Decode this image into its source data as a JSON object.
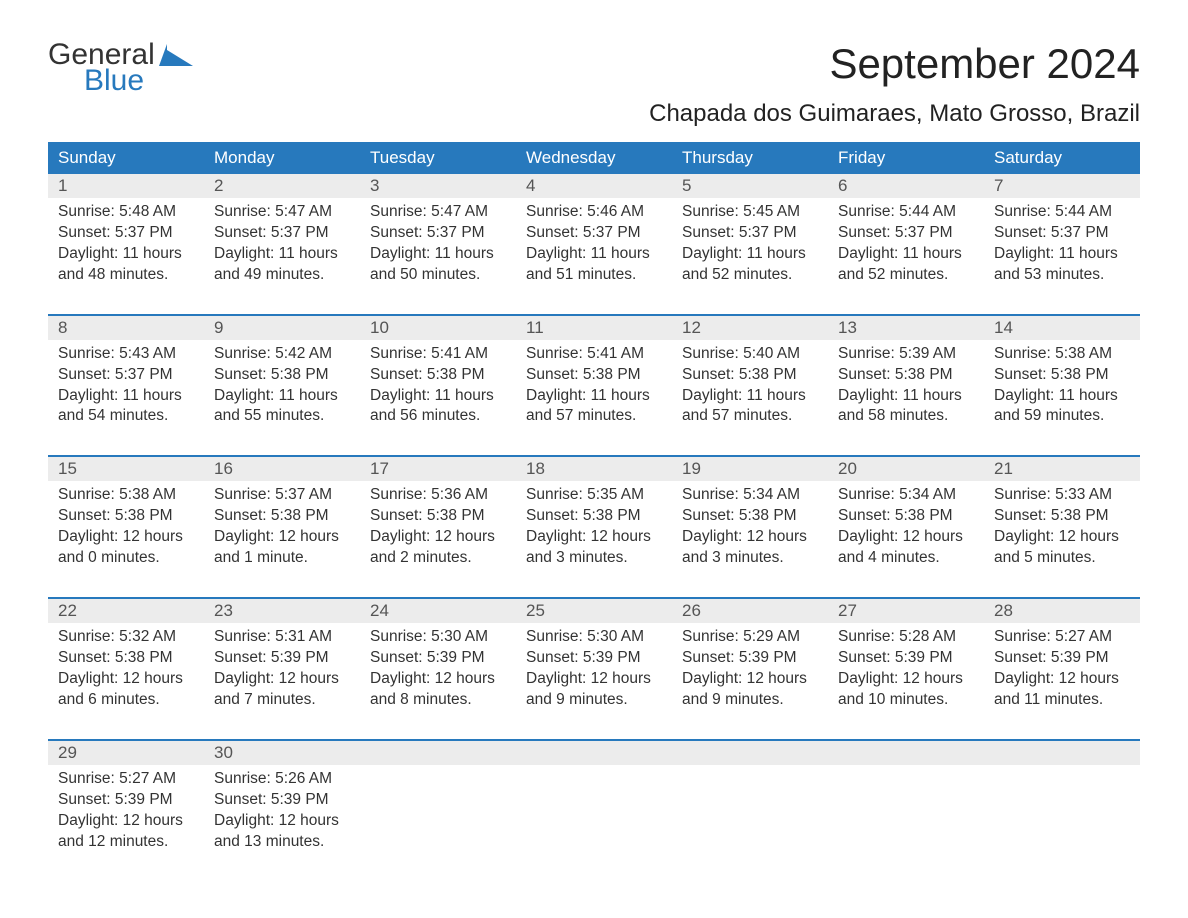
{
  "logo": {
    "line1": "General",
    "line2": "Blue",
    "mark_color": "#2779bd"
  },
  "title": "September 2024",
  "subtitle": "Chapada dos Guimaraes, Mato Grosso, Brazil",
  "colors": {
    "header_bg": "#2779bd",
    "header_text": "#ffffff",
    "daynum_bg": "#ececec",
    "text": "#333333",
    "rule": "#2779bd"
  },
  "weekdays": [
    "Sunday",
    "Monday",
    "Tuesday",
    "Wednesday",
    "Thursday",
    "Friday",
    "Saturday"
  ],
  "weeks": [
    [
      {
        "n": "1",
        "sunrise": "Sunrise: 5:48 AM",
        "sunset": "Sunset: 5:37 PM",
        "day1": "Daylight: 11 hours",
        "day2": "and 48 minutes."
      },
      {
        "n": "2",
        "sunrise": "Sunrise: 5:47 AM",
        "sunset": "Sunset: 5:37 PM",
        "day1": "Daylight: 11 hours",
        "day2": "and 49 minutes."
      },
      {
        "n": "3",
        "sunrise": "Sunrise: 5:47 AM",
        "sunset": "Sunset: 5:37 PM",
        "day1": "Daylight: 11 hours",
        "day2": "and 50 minutes."
      },
      {
        "n": "4",
        "sunrise": "Sunrise: 5:46 AM",
        "sunset": "Sunset: 5:37 PM",
        "day1": "Daylight: 11 hours",
        "day2": "and 51 minutes."
      },
      {
        "n": "5",
        "sunrise": "Sunrise: 5:45 AM",
        "sunset": "Sunset: 5:37 PM",
        "day1": "Daylight: 11 hours",
        "day2": "and 52 minutes."
      },
      {
        "n": "6",
        "sunrise": "Sunrise: 5:44 AM",
        "sunset": "Sunset: 5:37 PM",
        "day1": "Daylight: 11 hours",
        "day2": "and 52 minutes."
      },
      {
        "n": "7",
        "sunrise": "Sunrise: 5:44 AM",
        "sunset": "Sunset: 5:37 PM",
        "day1": "Daylight: 11 hours",
        "day2": "and 53 minutes."
      }
    ],
    [
      {
        "n": "8",
        "sunrise": "Sunrise: 5:43 AM",
        "sunset": "Sunset: 5:37 PM",
        "day1": "Daylight: 11 hours",
        "day2": "and 54 minutes."
      },
      {
        "n": "9",
        "sunrise": "Sunrise: 5:42 AM",
        "sunset": "Sunset: 5:38 PM",
        "day1": "Daylight: 11 hours",
        "day2": "and 55 minutes."
      },
      {
        "n": "10",
        "sunrise": "Sunrise: 5:41 AM",
        "sunset": "Sunset: 5:38 PM",
        "day1": "Daylight: 11 hours",
        "day2": "and 56 minutes."
      },
      {
        "n": "11",
        "sunrise": "Sunrise: 5:41 AM",
        "sunset": "Sunset: 5:38 PM",
        "day1": "Daylight: 11 hours",
        "day2": "and 57 minutes."
      },
      {
        "n": "12",
        "sunrise": "Sunrise: 5:40 AM",
        "sunset": "Sunset: 5:38 PM",
        "day1": "Daylight: 11 hours",
        "day2": "and 57 minutes."
      },
      {
        "n": "13",
        "sunrise": "Sunrise: 5:39 AM",
        "sunset": "Sunset: 5:38 PM",
        "day1": "Daylight: 11 hours",
        "day2": "and 58 minutes."
      },
      {
        "n": "14",
        "sunrise": "Sunrise: 5:38 AM",
        "sunset": "Sunset: 5:38 PM",
        "day1": "Daylight: 11 hours",
        "day2": "and 59 minutes."
      }
    ],
    [
      {
        "n": "15",
        "sunrise": "Sunrise: 5:38 AM",
        "sunset": "Sunset: 5:38 PM",
        "day1": "Daylight: 12 hours",
        "day2": "and 0 minutes."
      },
      {
        "n": "16",
        "sunrise": "Sunrise: 5:37 AM",
        "sunset": "Sunset: 5:38 PM",
        "day1": "Daylight: 12 hours",
        "day2": "and 1 minute."
      },
      {
        "n": "17",
        "sunrise": "Sunrise: 5:36 AM",
        "sunset": "Sunset: 5:38 PM",
        "day1": "Daylight: 12 hours",
        "day2": "and 2 minutes."
      },
      {
        "n": "18",
        "sunrise": "Sunrise: 5:35 AM",
        "sunset": "Sunset: 5:38 PM",
        "day1": "Daylight: 12 hours",
        "day2": "and 3 minutes."
      },
      {
        "n": "19",
        "sunrise": "Sunrise: 5:34 AM",
        "sunset": "Sunset: 5:38 PM",
        "day1": "Daylight: 12 hours",
        "day2": "and 3 minutes."
      },
      {
        "n": "20",
        "sunrise": "Sunrise: 5:34 AM",
        "sunset": "Sunset: 5:38 PM",
        "day1": "Daylight: 12 hours",
        "day2": "and 4 minutes."
      },
      {
        "n": "21",
        "sunrise": "Sunrise: 5:33 AM",
        "sunset": "Sunset: 5:38 PM",
        "day1": "Daylight: 12 hours",
        "day2": "and 5 minutes."
      }
    ],
    [
      {
        "n": "22",
        "sunrise": "Sunrise: 5:32 AM",
        "sunset": "Sunset: 5:38 PM",
        "day1": "Daylight: 12 hours",
        "day2": "and 6 minutes."
      },
      {
        "n": "23",
        "sunrise": "Sunrise: 5:31 AM",
        "sunset": "Sunset: 5:39 PM",
        "day1": "Daylight: 12 hours",
        "day2": "and 7 minutes."
      },
      {
        "n": "24",
        "sunrise": "Sunrise: 5:30 AM",
        "sunset": "Sunset: 5:39 PM",
        "day1": "Daylight: 12 hours",
        "day2": "and 8 minutes."
      },
      {
        "n": "25",
        "sunrise": "Sunrise: 5:30 AM",
        "sunset": "Sunset: 5:39 PM",
        "day1": "Daylight: 12 hours",
        "day2": "and 9 minutes."
      },
      {
        "n": "26",
        "sunrise": "Sunrise: 5:29 AM",
        "sunset": "Sunset: 5:39 PM",
        "day1": "Daylight: 12 hours",
        "day2": "and 9 minutes."
      },
      {
        "n": "27",
        "sunrise": "Sunrise: 5:28 AM",
        "sunset": "Sunset: 5:39 PM",
        "day1": "Daylight: 12 hours",
        "day2": "and 10 minutes."
      },
      {
        "n": "28",
        "sunrise": "Sunrise: 5:27 AM",
        "sunset": "Sunset: 5:39 PM",
        "day1": "Daylight: 12 hours",
        "day2": "and 11 minutes."
      }
    ],
    [
      {
        "n": "29",
        "sunrise": "Sunrise: 5:27 AM",
        "sunset": "Sunset: 5:39 PM",
        "day1": "Daylight: 12 hours",
        "day2": "and 12 minutes."
      },
      {
        "n": "30",
        "sunrise": "Sunrise: 5:26 AM",
        "sunset": "Sunset: 5:39 PM",
        "day1": "Daylight: 12 hours",
        "day2": "and 13 minutes."
      },
      null,
      null,
      null,
      null,
      null
    ]
  ]
}
